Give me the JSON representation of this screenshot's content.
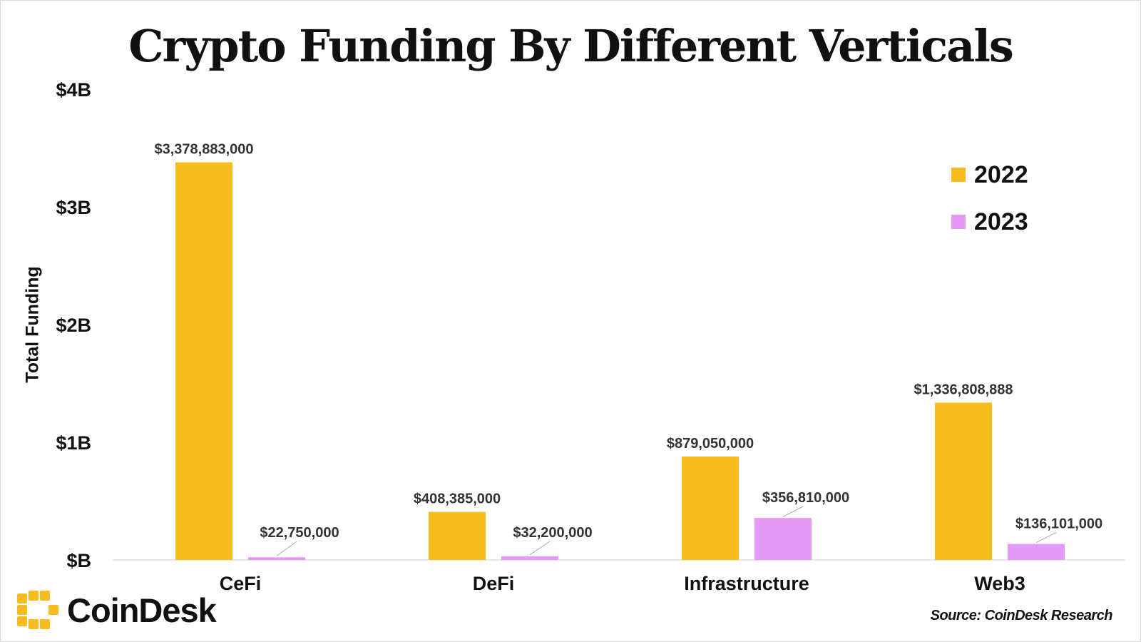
{
  "brand": {
    "name": "CoinDesk",
    "source": "Source: CoinDesk Research",
    "logo_color": "#f7bd1f"
  },
  "chart_data": {
    "type": "bar",
    "title": "Crypto Funding By Different Verticals",
    "xlabel": "",
    "ylabel": "Total Funding",
    "ylim": [
      0,
      4000000000
    ],
    "yticks": [
      {
        "value": 0,
        "label": "$B"
      },
      {
        "value": 1000000000,
        "label": "$1B"
      },
      {
        "value": 2000000000,
        "label": "$2B"
      },
      {
        "value": 3000000000,
        "label": "$3B"
      },
      {
        "value": 4000000000,
        "label": "$4B"
      }
    ],
    "categories": [
      "CeFi",
      "DeFi",
      "Infrastructure",
      "Web3"
    ],
    "series": [
      {
        "name": "2022",
        "color": "#f7bd1f",
        "values": [
          3378883000,
          408385000,
          879050000,
          1336808888
        ],
        "labels": [
          "$3,378,883,000",
          "$408,385,000",
          "$879,050,000",
          "$1,336,808,888"
        ]
      },
      {
        "name": "2023",
        "color": "#e49af6",
        "values": [
          22750000,
          32200000,
          356810000,
          136101000
        ],
        "labels": [
          "$22,750,000",
          "$32,200,000",
          "$356,810,000",
          "$136,101,000"
        ]
      }
    ],
    "grid": false,
    "legend": "top-right"
  }
}
